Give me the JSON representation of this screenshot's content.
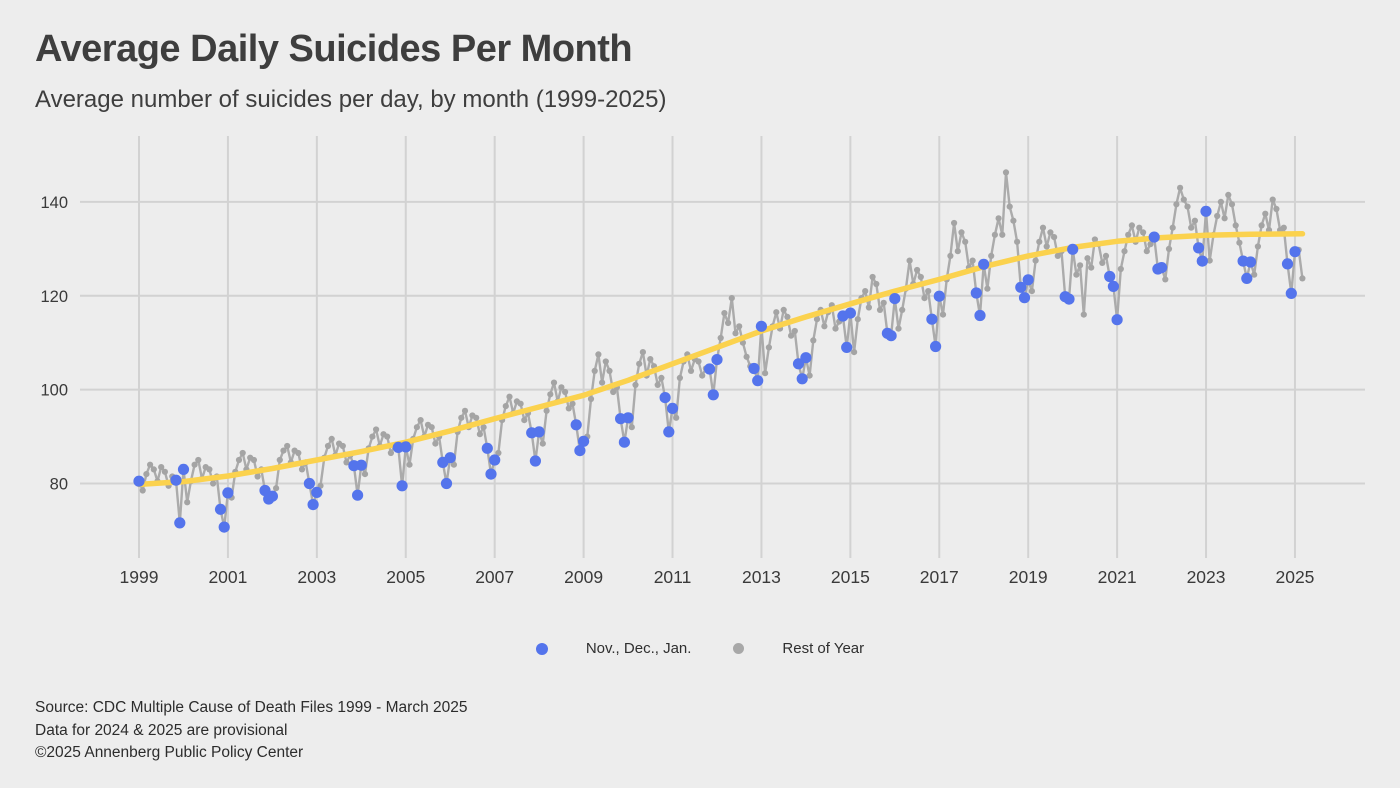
{
  "header": {
    "title": "Average Daily Suicides Per Month",
    "subtitle": "Average number of suicides per day, by month (1999-2025)"
  },
  "legend": {
    "items": [
      {
        "label": "Nov., Dec., Jan.",
        "color": "#5474ec"
      },
      {
        "label": "Rest of Year",
        "color": "#a8a8a8"
      }
    ]
  },
  "footer": {
    "line1": "Source: CDC Multiple Cause of Death Files 1999 - March 2025",
    "line2": "Data for 2024 & 2025 are provisional",
    "line3": "©2025 Annenberg Public Policy Center"
  },
  "colors": {
    "background": "#ededed",
    "gridline": "#d2d2d2",
    "gray_line": "#ababab",
    "gray_dot": "#a4a4a4",
    "blue_dot": "#5474ec",
    "trend": "#fbd24e",
    "axis_text": "#3a3a3a"
  },
  "chart_data": {
    "type": "line",
    "title": "Average Daily Suicides Per Month",
    "xlabel": "",
    "ylabel": "",
    "x_ticks": [
      1999,
      2001,
      2003,
      2005,
      2007,
      2009,
      2011,
      2013,
      2015,
      2017,
      2019,
      2021,
      2023,
      2025
    ],
    "y_ticks": [
      80,
      100,
      120,
      140
    ],
    "xlim": [
      1998.5,
      2026.5
    ],
    "ylim": [
      63,
      150
    ],
    "grid": true,
    "highlight_months": [
      "Nov",
      "Dec",
      "Jan"
    ],
    "monthly_series": {
      "name": "Average daily suicides per month",
      "start_year": 1999,
      "start_month": 1,
      "end_label": "March 2025",
      "values": [
        80.5,
        78.5,
        82.0,
        84.0,
        83.0,
        80.5,
        83.5,
        82.5,
        79.5,
        81.5,
        80.7,
        71.6,
        83.0,
        76.0,
        80.5,
        84.0,
        85.0,
        81.0,
        83.5,
        83.0,
        80.0,
        81.5,
        74.5,
        70.7,
        78.0,
        77.0,
        82.5,
        85.0,
        86.5,
        83.0,
        85.5,
        85.0,
        81.5,
        83.0,
        78.5,
        76.7,
        77.3,
        79.0,
        85.0,
        87.0,
        88.0,
        84.5,
        87.0,
        86.5,
        83.0,
        84.5,
        80.0,
        75.5,
        78.1,
        79.5,
        85.5,
        88.0,
        89.5,
        86.0,
        88.5,
        88.0,
        84.5,
        86.0,
        83.8,
        77.5,
        83.9,
        82.0,
        87.5,
        90.0,
        91.5,
        88.0,
        90.5,
        90.0,
        86.5,
        88.0,
        87.7,
        79.5,
        87.8,
        84.0,
        89.5,
        92.0,
        93.5,
        90.0,
        92.5,
        92.0,
        88.5,
        90.0,
        84.5,
        80.0,
        85.5,
        84.0,
        91.0,
        94.0,
        95.5,
        92.0,
        94.5,
        94.0,
        90.5,
        92.0,
        87.5,
        82.0,
        85.0,
        86.5,
        93.5,
        96.5,
        98.5,
        95.0,
        97.5,
        97.0,
        93.5,
        95.0,
        90.8,
        84.8,
        91.0,
        88.5,
        95.5,
        99.0,
        101.5,
        97.5,
        100.5,
        99.5,
        96.0,
        97.0,
        92.5,
        87.0,
        89.0,
        90.0,
        98.0,
        104.0,
        107.5,
        101.5,
        106.0,
        104.0,
        99.5,
        100.5,
        93.8,
        88.8,
        94.0,
        92.0,
        101.0,
        105.5,
        108.0,
        103.0,
        106.5,
        105.0,
        101.0,
        102.5,
        98.3,
        91.0,
        96.0,
        94.0,
        102.5,
        106.0,
        107.5,
        104.0,
        106.5,
        106.0,
        103.0,
        104.5,
        104.4,
        98.9,
        106.4,
        111.0,
        116.3,
        114.2,
        119.5,
        112.0,
        113.5,
        110.0,
        107.0,
        105.0,
        104.5,
        101.9,
        113.5,
        103.5,
        109.0,
        113.5,
        116.5,
        113.0,
        117.0,
        115.5,
        111.5,
        112.5,
        105.5,
        102.3,
        106.8,
        103.0,
        110.5,
        115.0,
        117.0,
        113.5,
        116.5,
        118.0,
        113.0,
        114.5,
        115.7,
        109.0,
        116.3,
        108.0,
        115.0,
        119.5,
        121.0,
        117.5,
        124.0,
        122.5,
        117.0,
        118.5,
        112.0,
        111.5,
        119.4,
        113.0,
        117.0,
        121.5,
        127.5,
        122.5,
        125.5,
        124.0,
        119.5,
        121.0,
        115.0,
        109.2,
        119.9,
        116.0,
        123.5,
        128.5,
        135.5,
        129.5,
        133.5,
        131.5,
        126.0,
        127.5,
        120.6,
        115.8,
        126.7,
        121.5,
        128.5,
        133.0,
        136.5,
        133.0,
        146.3,
        139.0,
        136.0,
        131.5,
        121.8,
        119.6,
        123.4,
        121.0,
        127.5,
        131.5,
        134.5,
        130.5,
        133.5,
        132.5,
        128.5,
        129.5,
        119.8,
        119.3,
        129.9,
        124.5,
        126.5,
        116.0,
        128.0,
        126.0,
        132.0,
        131.0,
        127.0,
        128.5,
        124.1,
        122.0,
        114.9,
        125.7,
        129.5,
        133.0,
        135.0,
        131.5,
        134.5,
        133.5,
        129.5,
        131.0,
        132.5,
        125.7,
        126.0,
        123.5,
        130.0,
        134.5,
        139.5,
        143.0,
        140.5,
        139.0,
        134.5,
        136.0,
        130.2,
        127.4,
        138.0,
        127.5,
        133.0,
        137.0,
        140.0,
        136.5,
        141.5,
        139.5,
        135.0,
        131.3,
        127.4,
        123.7,
        127.2,
        124.5,
        130.5,
        135.0,
        137.5,
        134.0,
        140.5,
        138.5,
        134.0,
        134.5,
        126.8,
        120.5,
        129.4,
        129.8,
        123.7
      ]
    },
    "trend_series": {
      "name": "Smoothed trend",
      "start_year": 1999,
      "step_years": 1,
      "values": [
        79.8,
        80.4,
        81.6,
        83.2,
        85.0,
        86.8,
        88.8,
        91.2,
        93.8,
        96.3,
        98.8,
        102.0,
        105.5,
        109.0,
        112.5,
        115.5,
        118.3,
        121.0,
        123.5,
        126.2,
        128.5,
        130.3,
        131.6,
        132.4,
        132.9,
        133.1,
        133.2
      ],
      "end_fraction_of_final_year": 0.17
    }
  }
}
